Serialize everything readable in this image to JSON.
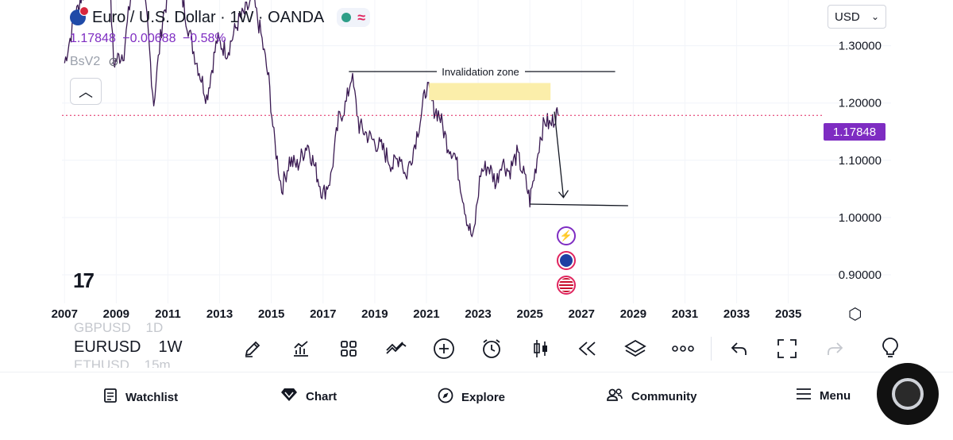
{
  "symbol": {
    "title": "Euro / U.S. Dollar · 1W · OANDA",
    "flag_icon": "eur-usd-flag-icon",
    "status_icon": "market-open-dot-icon",
    "wave_icon": "≈"
  },
  "ohlc": {
    "price": "1.17848",
    "change": "−0.00688",
    "change_pct": "−0.58%"
  },
  "indicator": {
    "label": "BsV2",
    "icon": "eye-off-icon"
  },
  "currency": {
    "value": "USD"
  },
  "last_price_tag": "1.17848",
  "colors": {
    "accent": "#7e2cc2",
    "highlight": "#fbeeaa",
    "last_price_line": "#e0245e"
  },
  "chart_data": {
    "type": "line",
    "title": "Euro / U.S. Dollar · 1W · OANDA",
    "x_ticks": [
      "2007",
      "2009",
      "2011",
      "2013",
      "2015",
      "2017",
      "2019",
      "2021",
      "2023",
      "2025",
      "2027",
      "2029",
      "2031",
      "2033",
      "2035"
    ],
    "y_ticks": [
      "1.30000",
      "1.20000",
      "1.10000",
      "1.00000",
      "0.90000"
    ],
    "ylim": [
      0.85,
      1.38
    ],
    "xlim": [
      2006.9,
      2036.3
    ],
    "series": [
      {
        "x": [
          2007.0,
          2007.3,
          2007.6,
          2008.0,
          2008.4,
          2008.7,
          2008.9,
          2009.3,
          2009.6,
          2009.9,
          2010.2,
          2010.45,
          2010.8,
          2011.3,
          2011.7,
          2012.0,
          2012.5,
          2012.9,
          2013.3,
          2013.7,
          2014.3,
          2014.6,
          2014.9,
          2015.1,
          2015.4,
          2015.7,
          2016.0,
          2016.4,
          2016.8,
          2017.0,
          2017.3,
          2017.6,
          2017.9,
          2018.1,
          2018.4,
          2018.8,
          2019.3,
          2019.7,
          2020.0,
          2020.2,
          2020.5,
          2020.8,
          2021.0,
          2021.3,
          2021.5,
          2021.8,
          2022.1,
          2022.4,
          2022.6,
          2022.8,
          2023.1,
          2023.4,
          2023.7,
          2023.9,
          2024.2,
          2024.5,
          2024.8,
          2025.0,
          2025.2,
          2025.4,
          2025.6,
          2025.8,
          2026.0,
          2026.1
        ],
        "y": [
          1.27,
          1.33,
          1.38,
          1.42,
          1.55,
          1.46,
          1.27,
          1.29,
          1.4,
          1.45,
          1.34,
          1.2,
          1.35,
          1.44,
          1.35,
          1.29,
          1.21,
          1.31,
          1.29,
          1.34,
          1.38,
          1.32,
          1.24,
          1.14,
          1.05,
          1.1,
          1.09,
          1.13,
          1.07,
          1.04,
          1.07,
          1.17,
          1.2,
          1.25,
          1.16,
          1.14,
          1.12,
          1.09,
          1.11,
          1.07,
          1.12,
          1.18,
          1.23,
          1.19,
          1.18,
          1.13,
          1.11,
          1.04,
          0.99,
          0.96,
          1.08,
          1.09,
          1.06,
          1.1,
          1.08,
          1.11,
          1.07,
          1.03,
          1.08,
          1.14,
          1.17,
          1.16,
          1.18,
          1.178
        ]
      }
    ],
    "annotations": {
      "invalidation_label": "Invalidation zone",
      "invalidation_line_y": 1.255,
      "invalidation_line_x": [
        2018.0,
        2028.3
      ],
      "zone_range": [
        1.205,
        1.235
      ],
      "zone_x": [
        2021.1,
        2025.8
      ],
      "target_line_y": 1.022,
      "target_line_x": [
        2025.0,
        2028.8
      ],
      "arrow_from": [
        2025.95,
        1.185
      ],
      "arrow_to": [
        2026.3,
        1.035
      ],
      "last_price": 1.17848
    }
  },
  "toolbar": {
    "symbols": {
      "prev": "GBPUSD",
      "prev_interval": "1D",
      "active": "EURUSD",
      "active_interval": "1W",
      "next": "ETHUSD",
      "next_interval": "15m"
    },
    "tools": [
      "brush-icon",
      "indicators-icon",
      "grid-layout-icon",
      "compare-icon",
      "add-icon",
      "alarm-icon",
      "candles-icon",
      "replay-icon",
      "layers-icon",
      "more-icon",
      "undo-icon",
      "fullscreen-icon",
      "redo-icon",
      "lightbulb-icon"
    ]
  },
  "nav": {
    "watchlist": "Watchlist",
    "chart": "Chart",
    "explore": "Explore",
    "community": "Community",
    "menu": "Menu"
  }
}
